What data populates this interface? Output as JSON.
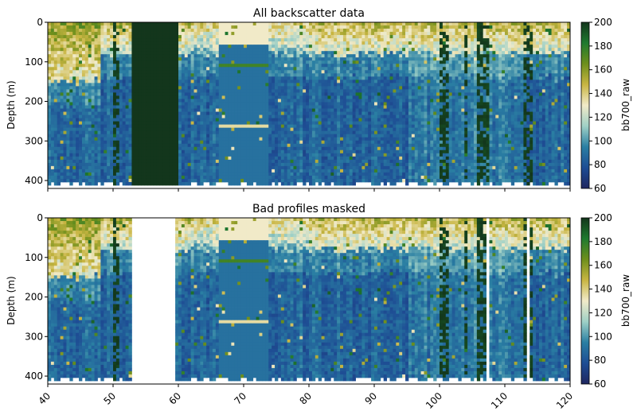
{
  "chart_data": [
    {
      "type": "heatmap",
      "title": "All backscatter data",
      "ylabel": "Depth (m)",
      "xlabel": "",
      "xlim": [
        40,
        120
      ],
      "ylim": [
        420,
        0
      ],
      "y_ticks": [
        0,
        100,
        200,
        300,
        400
      ],
      "x_ticks": [
        40,
        50,
        60,
        70,
        80,
        90,
        100,
        110,
        120
      ],
      "x_tick_labels_shown": false,
      "colorbar": {
        "label": "bb700_raw",
        "range": [
          60,
          200
        ],
        "ticks": [
          60,
          80,
          100,
          120,
          140,
          160,
          180,
          200
        ]
      },
      "colormap": [
        "#1f2760",
        "#1e4d94",
        "#2a7fa3",
        "#9fd0c6",
        "#f1eac8",
        "#c8b542",
        "#6e8f1c",
        "#1f7a2f",
        "#13361c"
      ],
      "bad_profiles": [
        [
          52.7,
          59.8
        ]
      ],
      "notes": "Backscatter mostly 70-100 in deep water (blue), 120-160 near surface (pale/yellow), with saturated (~200) dark green profiles."
    },
    {
      "type": "heatmap",
      "title": "Bad profiles masked",
      "ylabel": "Depth (m)",
      "xlabel": "",
      "xlim": [
        40,
        120
      ],
      "ylim": [
        420,
        0
      ],
      "y_ticks": [
        0,
        100,
        200,
        300,
        400
      ],
      "x_ticks": [
        40,
        50,
        60,
        70,
        80,
        90,
        100,
        110,
        120
      ],
      "x_tick_labels": [
        "40",
        "50",
        "60",
        "70",
        "80",
        "90",
        "100",
        "110",
        "120"
      ],
      "colorbar": {
        "label": "bb700_raw",
        "range": [
          60,
          200
        ],
        "ticks": [
          60,
          80,
          100,
          120,
          140,
          160,
          180,
          200
        ]
      },
      "colormap": [
        "#1f2760",
        "#1e4d94",
        "#2a7fa3",
        "#9fd0c6",
        "#f1eac8",
        "#c8b542",
        "#6e8f1c",
        "#1f7a2f",
        "#13361c"
      ],
      "masked_profiles": [
        [
          52.7,
          59.4
        ],
        [
          107.2,
          107.5
        ],
        [
          113.5,
          113.8
        ]
      ]
    }
  ]
}
